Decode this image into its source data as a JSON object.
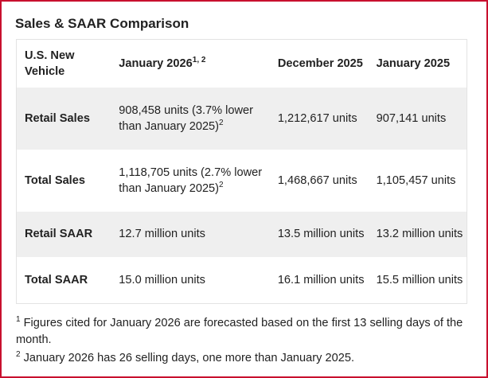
{
  "title": "Sales & SAAR Comparison",
  "table": {
    "headers": {
      "col1": "U.S. New Vehicle",
      "col2": "January 2026",
      "col2_sup": "1, 2",
      "col3": "December 2025",
      "col4": "January 2025"
    },
    "rows": [
      {
        "label": "Retail Sales",
        "jan2026": "908,458 units (3.7% lower than January 2025)",
        "jan2026_sup": "2",
        "dec2025": "1,212,617 units",
        "jan2025": "907,141 units"
      },
      {
        "label": "Total Sales",
        "jan2026": "1,118,705 units (2.7% lower than January 2025)",
        "jan2026_sup": "2",
        "dec2025": "1,468,667 units",
        "jan2025": "1,105,457 units"
      },
      {
        "label": "Retail SAAR",
        "jan2026": "12.7 million units",
        "dec2025": "13.5 million units",
        "jan2025": "13.2 million units"
      },
      {
        "label": "Total SAAR",
        "jan2026": "15.0 million units",
        "dec2025": "16.1 million units",
        "jan2025": "15.5 million units"
      }
    ]
  },
  "footnotes": [
    {
      "marker": "1",
      "text": "Figures cited for January 2026 are forecasted based on the first 13 selling days of the month."
    },
    {
      "marker": "2",
      "text": "January 2026 has 26 selling days, one more than January 2025."
    }
  ]
}
